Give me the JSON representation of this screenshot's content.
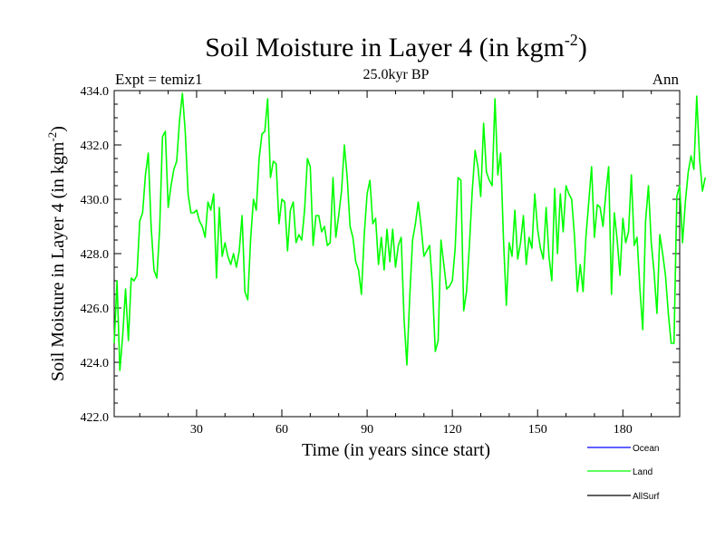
{
  "chart_data": {
    "type": "line",
    "title": "Soil Moisture in Layer 4 (in kgm",
    "title_sup": "-2",
    "title_close": ")",
    "left_label": "Expt = temiz1",
    "center_label": "25.0kyr BP",
    "right_label": "Ann",
    "xlabel": "Time (in years since start)",
    "ylabel": "Soil Moisture in Layer 4 (in kgm",
    "ylabel_sup": "-2",
    "ylabel_close": ")",
    "xlim": [
      1,
      200
    ],
    "ylim": [
      422,
      434
    ],
    "x_ticks": [
      30,
      60,
      90,
      120,
      150,
      180
    ],
    "y_ticks": [
      422,
      424,
      426,
      428,
      430,
      432,
      434
    ],
    "y_tick_labels": [
      "422.0",
      "424.0",
      "426.0",
      "428.0",
      "430.0",
      "432.0",
      "434.0"
    ],
    "legend": [
      {
        "name": "Ocean",
        "color": "#0000ff"
      },
      {
        "name": "Land",
        "color": "#00ff00"
      },
      {
        "name": "AllSurf",
        "color": "#000000"
      }
    ],
    "series": [
      {
        "name": "Land",
        "color": "#00ff00",
        "x_start": 1,
        "x_step": 1,
        "values": [
          424.7,
          427.0,
          423.7,
          425.0,
          426.7,
          424.8,
          427.1,
          427.0,
          427.2,
          429.2,
          429.5,
          430.9,
          431.7,
          429.0,
          427.4,
          427.1,
          428.9,
          432.3,
          432.5,
          429.7,
          430.5,
          431.1,
          431.4,
          432.9,
          433.9,
          432.5,
          430.2,
          429.5,
          429.5,
          429.6,
          429.2,
          429.0,
          428.6,
          429.9,
          429.6,
          430.2,
          427.1,
          429.7,
          427.9,
          428.4,
          427.9,
          427.6,
          428.0,
          427.5,
          428.1,
          429.4,
          426.6,
          426.3,
          428.5,
          430.0,
          429.6,
          431.5,
          432.4,
          432.5,
          433.7,
          430.8,
          431.4,
          431.3,
          429.1,
          430.0,
          429.9,
          428.1,
          429.6,
          429.9,
          428.4,
          428.7,
          428.5,
          429.6,
          431.5,
          431.2,
          428.3,
          429.4,
          429.4,
          428.8,
          429.0,
          428.3,
          428.4,
          430.8,
          428.6,
          429.4,
          430.3,
          432.0,
          430.8,
          429.0,
          428.6,
          427.7,
          427.4,
          426.5,
          428.7,
          430.2,
          430.7,
          429.1,
          429.3,
          427.6,
          428.6,
          427.4,
          428.9,
          427.7,
          428.9,
          427.5,
          428.3,
          428.6,
          425.6,
          423.9,
          426.4,
          428.5,
          429.1,
          429.9,
          429.0,
          427.9,
          428.1,
          428.3,
          426.8,
          424.4,
          424.8,
          428.5,
          427.6,
          426.7,
          426.8,
          427.0,
          428.2,
          430.8,
          430.7,
          425.9,
          426.6,
          428.3,
          430.3,
          431.8,
          431.2,
          430.1,
          432.8,
          431.0,
          430.7,
          430.5,
          433.7,
          430.9,
          431.7,
          428.5,
          426.1,
          428.4,
          427.9,
          429.6,
          427.8,
          428.4,
          429.4,
          427.6,
          428.6,
          428.2,
          430.2,
          428.9,
          428.2,
          427.8,
          429.7,
          427.9,
          427.0,
          430.4,
          428.0,
          430.2,
          428.8,
          430.5,
          430.2,
          430.0,
          428.6,
          426.6,
          427.6,
          426.6,
          428.6,
          429.9,
          431.2,
          428.6,
          429.8,
          429.7,
          429.0,
          430.2,
          431.2,
          426.5,
          429.5,
          428.5,
          427.2,
          429.3,
          428.4,
          428.8,
          430.9,
          428.3,
          428.6,
          426.7,
          425.2,
          429.2,
          430.5,
          428.4,
          427.3,
          425.8,
          428.7,
          428.0,
          427.2,
          425.8,
          424.7,
          424.7,
          430.1,
          430.5,
          428.4,
          429.9,
          431.0,
          431.6,
          431.1,
          433.8,
          431.5,
          430.3,
          430.8
        ]
      }
    ]
  }
}
